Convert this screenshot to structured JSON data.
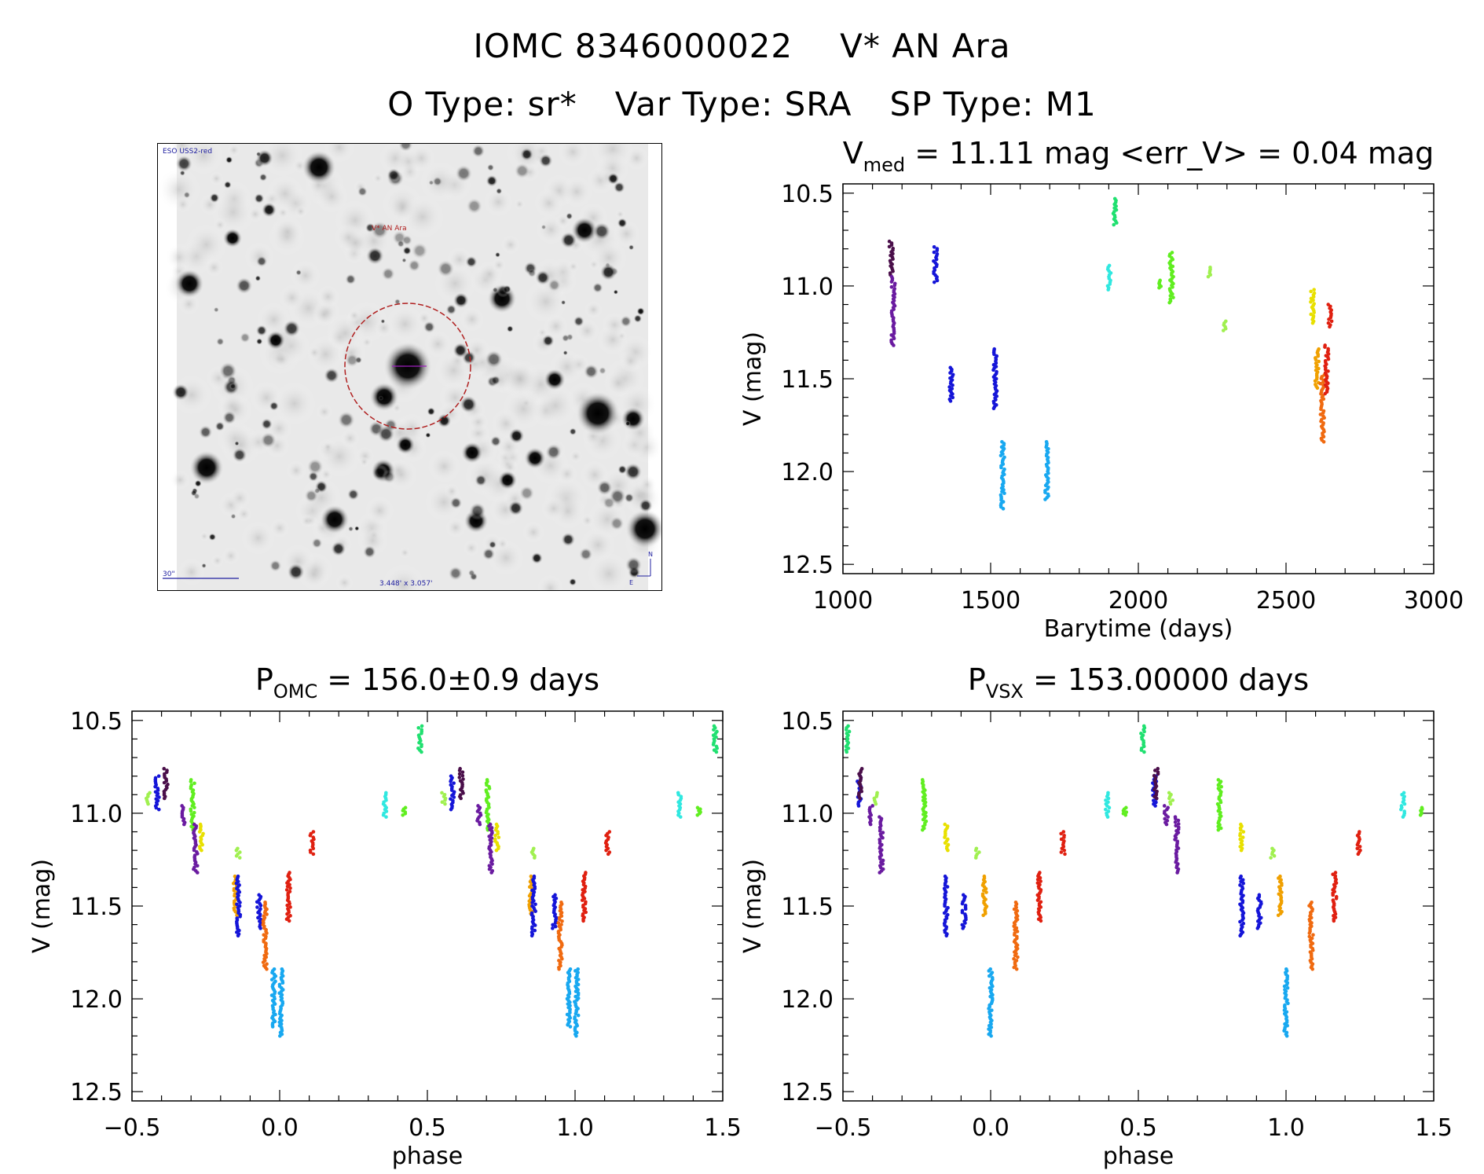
{
  "header": {
    "id_label": "IOMC 8346000022",
    "star_name": "V* AN Ara",
    "otype": "O Type: sr*",
    "vartype": "Var Type: SRA",
    "sptype": "SP Type: M1"
  },
  "finder": {
    "survey": "ESO USS2-red",
    "target_label": "V* AN Ara",
    "scale_label": "30\"",
    "fov_label": "3.448' x 3.057'",
    "north": "N",
    "east": "E"
  },
  "colors": {
    "purple": "#6a1ba0",
    "darkpurple": "#4a0f4a",
    "blue": "#1515d8",
    "skyblue": "#18a8f0",
    "mint": "#20e070",
    "lime": "#60ee20",
    "lightgreen": "#a0f050",
    "yellow": "#e8e000",
    "amber": "#f0a000",
    "orange": "#f06a10",
    "red": "#e02010",
    "cyan": "#30e8e0",
    "finder_ring": "#b02020",
    "finder_marks": "#2020a0"
  },
  "chart_data": [
    {
      "id": "lightcurve",
      "type": "scatter",
      "title_main": "V",
      "title_sub": "med",
      "title_rest": " = 11.11 mag <err_V> = 0.04 mag",
      "xlabel": "Barytime (days)",
      "ylabel": "V (mag)",
      "xlim": [
        1000,
        3000
      ],
      "ylim": [
        12.55,
        10.45
      ],
      "xticks": [
        1000,
        1500,
        2000,
        2500,
        3000
      ],
      "xtick_labels": [
        "1000",
        "1500",
        "2000",
        "2500",
        "3000"
      ],
      "yticks": [
        10.5,
        11.0,
        11.5,
        12.0,
        12.5
      ],
      "ytick_labels": [
        "10.5",
        "11.0",
        "11.5",
        "12.0",
        "12.5"
      ],
      "groups": [
        {
          "color": "darkpurple",
          "x": 1163,
          "ymin": 10.76,
          "ymax": 10.94
        },
        {
          "color": "purple",
          "x": 1170,
          "ymin": 10.95,
          "ymax": 11.32
        },
        {
          "color": "blue",
          "x": 1313,
          "ymin": 10.79,
          "ymax": 10.98
        },
        {
          "color": "blue",
          "x": 1367,
          "ymin": 11.44,
          "ymax": 11.62
        },
        {
          "color": "blue",
          "x": 1515,
          "ymin": 11.34,
          "ymax": 11.66
        },
        {
          "color": "skyblue",
          "x": 1540,
          "ymin": 11.84,
          "ymax": 12.2
        },
        {
          "color": "skyblue",
          "x": 1690,
          "ymin": 11.84,
          "ymax": 12.15
        },
        {
          "color": "cyan",
          "x": 1902,
          "ymin": 10.89,
          "ymax": 11.02
        },
        {
          "color": "mint",
          "x": 1920,
          "ymin": 10.53,
          "ymax": 10.67
        },
        {
          "color": "lime",
          "x": 2072,
          "ymin": 10.97,
          "ymax": 11.01
        },
        {
          "color": "lime",
          "x": 2112,
          "ymin": 10.82,
          "ymax": 11.09
        },
        {
          "color": "lightgreen",
          "x": 2240,
          "ymin": 10.9,
          "ymax": 10.95
        },
        {
          "color": "lightgreen",
          "x": 2292,
          "ymin": 11.19,
          "ymax": 11.24
        },
        {
          "color": "yellow",
          "x": 2590,
          "ymin": 11.02,
          "ymax": 11.2
        },
        {
          "color": "amber",
          "x": 2605,
          "ymin": 11.34,
          "ymax": 11.55
        },
        {
          "color": "orange",
          "x": 2623,
          "ymin": 11.48,
          "ymax": 11.84
        },
        {
          "color": "red",
          "x": 2638,
          "ymin": 11.32,
          "ymax": 11.58
        },
        {
          "color": "red",
          "x": 2648,
          "ymin": 11.1,
          "ymax": 11.22
        }
      ]
    },
    {
      "id": "phase_omc",
      "type": "scatter",
      "title_main": "P",
      "title_sub": "OMC",
      "title_rest": " = 156.0±0.9 days",
      "xlabel": "phase",
      "ylabel": "V (mag)",
      "xlim": [
        -0.5,
        1.5
      ],
      "ylim": [
        12.55,
        10.45
      ],
      "xticks": [
        -0.5,
        0.0,
        0.5,
        1.0,
        1.5
      ],
      "xtick_labels": [
        "−0.5",
        "0.0",
        "0.5",
        "1.0",
        "1.5"
      ],
      "yticks": [
        10.5,
        11.0,
        11.5,
        12.0,
        12.5
      ],
      "ytick_labels": [
        "10.5",
        "11.0",
        "11.5",
        "12.0",
        "12.5"
      ],
      "groups": [
        {
          "color": "lightgreen",
          "x": -0.445,
          "ymin": 10.89,
          "ymax": 10.95
        },
        {
          "color": "blue",
          "x": -0.415,
          "ymin": 10.8,
          "ymax": 10.98
        },
        {
          "color": "darkpurple",
          "x": -0.385,
          "ymin": 10.76,
          "ymax": 10.92
        },
        {
          "color": "purple",
          "x": -0.325,
          "ymin": 10.96,
          "ymax": 11.06
        },
        {
          "color": "lime",
          "x": -0.295,
          "ymin": 10.82,
          "ymax": 11.09
        },
        {
          "color": "purple",
          "x": -0.285,
          "ymin": 11.06,
          "ymax": 11.32
        },
        {
          "color": "yellow",
          "x": -0.265,
          "ymin": 11.06,
          "ymax": 11.2
        },
        {
          "color": "lightgreen",
          "x": -0.14,
          "ymin": 11.19,
          "ymax": 11.24
        },
        {
          "color": "amber",
          "x": -0.15,
          "ymin": 11.34,
          "ymax": 11.55
        },
        {
          "color": "blue",
          "x": -0.14,
          "ymin": 11.34,
          "ymax": 11.66
        },
        {
          "color": "blue",
          "x": -0.07,
          "ymin": 11.44,
          "ymax": 11.62
        },
        {
          "color": "orange",
          "x": -0.05,
          "ymin": 11.48,
          "ymax": 11.84
        },
        {
          "color": "skyblue",
          "x": -0.02,
          "ymin": 11.84,
          "ymax": 12.15
        },
        {
          "color": "skyblue",
          "x": 0.005,
          "ymin": 11.84,
          "ymax": 12.2
        },
        {
          "color": "red",
          "x": 0.03,
          "ymin": 11.32,
          "ymax": 11.58
        },
        {
          "color": "red",
          "x": 0.11,
          "ymin": 11.1,
          "ymax": 11.22
        },
        {
          "color": "cyan",
          "x": 0.355,
          "ymin": 10.89,
          "ymax": 11.02
        },
        {
          "color": "lime",
          "x": 0.42,
          "ymin": 10.97,
          "ymax": 11.01
        },
        {
          "color": "mint",
          "x": 0.475,
          "ymin": 10.53,
          "ymax": 10.67
        },
        {
          "color": "lightgreen",
          "x": 0.555,
          "ymin": 10.89,
          "ymax": 10.95
        },
        {
          "color": "blue",
          "x": 0.585,
          "ymin": 10.8,
          "ymax": 10.98
        },
        {
          "color": "darkpurple",
          "x": 0.615,
          "ymin": 10.76,
          "ymax": 10.92
        },
        {
          "color": "purple",
          "x": 0.675,
          "ymin": 10.96,
          "ymax": 11.06
        },
        {
          "color": "lime",
          "x": 0.705,
          "ymin": 10.82,
          "ymax": 11.09
        },
        {
          "color": "purple",
          "x": 0.715,
          "ymin": 11.06,
          "ymax": 11.32
        },
        {
          "color": "yellow",
          "x": 0.735,
          "ymin": 11.06,
          "ymax": 11.2
        },
        {
          "color": "lightgreen",
          "x": 0.86,
          "ymin": 11.19,
          "ymax": 11.24
        },
        {
          "color": "amber",
          "x": 0.85,
          "ymin": 11.34,
          "ymax": 11.55
        },
        {
          "color": "blue",
          "x": 0.86,
          "ymin": 11.34,
          "ymax": 11.66
        },
        {
          "color": "blue",
          "x": 0.93,
          "ymin": 11.44,
          "ymax": 11.62
        },
        {
          "color": "orange",
          "x": 0.95,
          "ymin": 11.48,
          "ymax": 11.84
        },
        {
          "color": "skyblue",
          "x": 0.98,
          "ymin": 11.84,
          "ymax": 12.15
        },
        {
          "color": "skyblue",
          "x": 1.005,
          "ymin": 11.84,
          "ymax": 12.2
        },
        {
          "color": "red",
          "x": 1.03,
          "ymin": 11.32,
          "ymax": 11.58
        },
        {
          "color": "red",
          "x": 1.11,
          "ymin": 11.1,
          "ymax": 11.22
        },
        {
          "color": "cyan",
          "x": 1.355,
          "ymin": 10.89,
          "ymax": 11.02
        },
        {
          "color": "lime",
          "x": 1.42,
          "ymin": 10.97,
          "ymax": 11.01
        },
        {
          "color": "mint",
          "x": 1.475,
          "ymin": 10.53,
          "ymax": 10.67
        }
      ]
    },
    {
      "id": "phase_vsx",
      "type": "scatter",
      "title_main": "P",
      "title_sub": "VSX",
      "title_rest": " = 153.00000 days",
      "xlabel": "phase",
      "ylabel": "V (mag)",
      "xlim": [
        -0.5,
        1.5
      ],
      "ylim": [
        12.55,
        10.45
      ],
      "xticks": [
        -0.5,
        0.0,
        0.5,
        1.0,
        1.5
      ],
      "xtick_labels": [
        "−0.5",
        "0.0",
        "0.5",
        "1.0",
        "1.5"
      ],
      "yticks": [
        10.5,
        11.0,
        11.5,
        12.0,
        12.5
      ],
      "ytick_labels": [
        "10.5",
        "11.0",
        "11.5",
        "12.0",
        "12.5"
      ],
      "groups": [
        {
          "color": "mint",
          "x": -0.485,
          "ymin": 10.53,
          "ymax": 10.67
        },
        {
          "color": "blue",
          "x": -0.445,
          "ymin": 10.8,
          "ymax": 10.96
        },
        {
          "color": "darkpurple",
          "x": -0.44,
          "ymin": 10.76,
          "ymax": 10.92
        },
        {
          "color": "purple",
          "x": -0.405,
          "ymin": 10.96,
          "ymax": 11.06
        },
        {
          "color": "lightgreen",
          "x": -0.39,
          "ymin": 10.89,
          "ymax": 10.95
        },
        {
          "color": "purple",
          "x": -0.37,
          "ymin": 11.02,
          "ymax": 11.32
        },
        {
          "color": "lime",
          "x": -0.225,
          "ymin": 10.82,
          "ymax": 11.09
        },
        {
          "color": "yellow",
          "x": -0.15,
          "ymin": 11.06,
          "ymax": 11.2
        },
        {
          "color": "blue",
          "x": -0.15,
          "ymin": 11.34,
          "ymax": 11.66
        },
        {
          "color": "lightgreen",
          "x": -0.045,
          "ymin": 11.19,
          "ymax": 11.24
        },
        {
          "color": "blue",
          "x": -0.09,
          "ymin": 11.44,
          "ymax": 11.62
        },
        {
          "color": "amber",
          "x": -0.02,
          "ymin": 11.34,
          "ymax": 11.55
        },
        {
          "color": "skyblue",
          "x": 0.0,
          "ymin": 11.84,
          "ymax": 12.2
        },
        {
          "color": "orange",
          "x": 0.085,
          "ymin": 11.48,
          "ymax": 11.84
        },
        {
          "color": "red",
          "x": 0.165,
          "ymin": 11.32,
          "ymax": 11.58
        },
        {
          "color": "red",
          "x": 0.245,
          "ymin": 11.1,
          "ymax": 11.22
        },
        {
          "color": "cyan",
          "x": 0.395,
          "ymin": 10.89,
          "ymax": 11.02
        },
        {
          "color": "lime",
          "x": 0.455,
          "ymin": 10.97,
          "ymax": 11.01
        },
        {
          "color": "mint",
          "x": 0.515,
          "ymin": 10.53,
          "ymax": 10.67
        },
        {
          "color": "blue",
          "x": 0.555,
          "ymin": 10.8,
          "ymax": 10.96
        },
        {
          "color": "darkpurple",
          "x": 0.56,
          "ymin": 10.76,
          "ymax": 10.92
        },
        {
          "color": "purple",
          "x": 0.595,
          "ymin": 10.96,
          "ymax": 11.06
        },
        {
          "color": "lightgreen",
          "x": 0.61,
          "ymin": 10.89,
          "ymax": 10.95
        },
        {
          "color": "purple",
          "x": 0.63,
          "ymin": 11.02,
          "ymax": 11.32
        },
        {
          "color": "lime",
          "x": 0.775,
          "ymin": 10.82,
          "ymax": 11.09
        },
        {
          "color": "yellow",
          "x": 0.85,
          "ymin": 11.06,
          "ymax": 11.2
        },
        {
          "color": "blue",
          "x": 0.85,
          "ymin": 11.34,
          "ymax": 11.66
        },
        {
          "color": "lightgreen",
          "x": 0.955,
          "ymin": 11.19,
          "ymax": 11.24
        },
        {
          "color": "blue",
          "x": 0.91,
          "ymin": 11.44,
          "ymax": 11.62
        },
        {
          "color": "amber",
          "x": 0.98,
          "ymin": 11.34,
          "ymax": 11.55
        },
        {
          "color": "skyblue",
          "x": 1.0,
          "ymin": 11.84,
          "ymax": 12.2
        },
        {
          "color": "orange",
          "x": 1.085,
          "ymin": 11.48,
          "ymax": 11.84
        },
        {
          "color": "red",
          "x": 1.165,
          "ymin": 11.32,
          "ymax": 11.58
        },
        {
          "color": "red",
          "x": 1.245,
          "ymin": 11.1,
          "ymax": 11.22
        },
        {
          "color": "cyan",
          "x": 1.395,
          "ymin": 10.89,
          "ymax": 11.02
        },
        {
          "color": "lime",
          "x": 1.455,
          "ymin": 10.97,
          "ymax": 11.01
        }
      ]
    }
  ]
}
